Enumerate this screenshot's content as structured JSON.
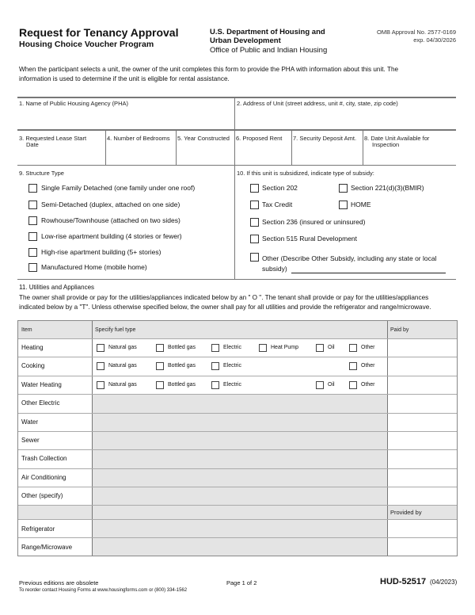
{
  "header": {
    "title": "Request for Tenancy Approval",
    "subtitle": "Housing Choice Voucher Program",
    "dept_line1": "U.S. Department of Housing and",
    "dept_line2": "Urban Development",
    "office": "Office of Public and Indian Housing",
    "omb": "OMB Approval No. 2577-0169",
    "exp": "exp. 04/30/2026"
  },
  "intro_line1": "When the participant selects a unit, the owner of the unit completes this form to provide the PHA with information about this unit. The",
  "intro_line2": "information is used to determine if the unit is eligible for rental assistance.",
  "fields": {
    "f1": "1. Name of Public Housing Agency (PHA)",
    "f2": "2. Address of Unit (street address, unit #, city, state, zip code)",
    "f3a": "3. Requested Lease Start",
    "f3b": "Date",
    "f4": "4. Number of Bedrooms",
    "f5": "5. Year Constructed",
    "f6": "6. Proposed Rent",
    "f7": "7. Security Deposit Amt.",
    "f8a": "8. Date Unit Available for",
    "f8b": "Inspection"
  },
  "structure": {
    "label": "9. Structure Type",
    "options": [
      "Single Family Detached (one family under one roof)",
      "Semi-Detached (duplex, attached on one side)",
      "Rowhouse/Townhouse (attached on two sides)",
      "Low-rise apartment building (4 stories or fewer)",
      "High-rise apartment building (5+ stories)",
      "Manufactured Home (mobile home)"
    ]
  },
  "subsidy": {
    "label": "10. If this unit is subsidized, indicate type of subsidy:",
    "options": [
      "Section 202",
      "Section 221(d)(3)(BMIR)",
      "Tax Credit",
      "HOME",
      "Section 236 (insured or uninsured)",
      "Section 515 Rural Development",
      "Other   (Describe Other Subsidy, including any state or local",
      "subsidy)"
    ]
  },
  "utilities": {
    "label": "11. Utilities and Appliances",
    "desc1": "The owner shall provide or pay for the utilities/appliances indicated below by an \" O \".  The tenant shall provide or pay for the utilities/appliances",
    "desc2": "indicated below by a \"T\". Unless otherwise specified below, the owner shall pay for all utilities and provide the refrigerator and range/microwave.",
    "col_item": "Item",
    "col_fuel": "Specify fuel type",
    "col_paid": "Paid by",
    "col_provided": "Provided by",
    "fuel": [
      "Natural gas",
      "Bottled gas",
      "Electric",
      "Heat Pump",
      "Oil",
      "Other"
    ],
    "rows": [
      "Heating",
      "Cooking",
      "Water Heating",
      "Other Electric",
      "Water",
      "Sewer",
      "Trash Collection",
      "Air Conditioning",
      "Other (specify)"
    ],
    "appliances": [
      "Refrigerator",
      "Range/Microwave"
    ]
  },
  "footer": {
    "obsolete": "Previous editions are obsolete",
    "reorder": "To reorder contact Housing Forms at www.housingforms.com or (800) 334-1562",
    "page": "Page 1 of 2",
    "form": "HUD-52517",
    "date": "(04/2023)"
  }
}
